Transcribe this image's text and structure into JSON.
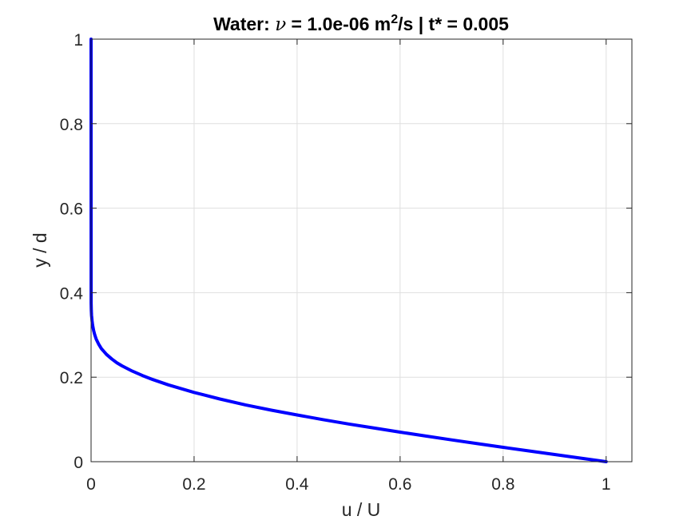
{
  "chart_data": {
    "type": "line",
    "title": {
      "prefix": "Water: ",
      "symbol": "ν",
      "middle": " = 1.0e-06 m",
      "superscript": "2",
      "suffix": "/s | t* = 0.005"
    },
    "xlabel": "u / U",
    "ylabel": "y / d",
    "xlim": [
      0,
      1.05
    ],
    "ylim": [
      0,
      1
    ],
    "xticks": [
      0,
      0.2,
      0.4,
      0.6,
      0.8,
      1
    ],
    "xtick_labels": [
      "0",
      "0.2",
      "0.4",
      "0.6",
      "0.8",
      "1"
    ],
    "yticks": [
      0,
      0.2,
      0.4,
      0.6,
      0.8,
      1
    ],
    "ytick_labels": [
      "0",
      "0.2",
      "0.4",
      "0.6",
      "0.8",
      "1"
    ],
    "grid": true,
    "box": true,
    "series": [
      {
        "color": "#0000ff",
        "x": [
          1.0,
          0.95,
          0.9,
          0.85,
          0.8,
          0.75,
          0.7,
          0.65,
          0.6,
          0.55,
          0.5,
          0.45,
          0.4,
          0.35,
          0.3,
          0.25,
          0.2,
          0.15,
          0.12,
          0.1,
          0.08,
          0.06,
          0.05,
          0.04,
          0.03,
          0.02,
          0.015,
          0.01,
          0.007,
          0.005,
          0.003,
          0.002,
          0.001,
          0.0005,
          0.0002,
          0.0
        ],
        "y": [
          0.0,
          0.0085,
          0.017,
          0.0255,
          0.0341,
          0.0428,
          0.0516,
          0.0606,
          0.0699,
          0.0795,
          0.0893,
          0.0996,
          0.1105,
          0.122,
          0.1344,
          0.1483,
          0.1638,
          0.1818,
          0.1944,
          0.2037,
          0.2144,
          0.2268,
          0.2343,
          0.2432,
          0.2539,
          0.2677,
          0.2775,
          0.2902,
          0.3011,
          0.3106,
          0.3235,
          0.3325,
          0.3461,
          0.3584,
          0.375,
          1.0
        ]
      }
    ]
  }
}
